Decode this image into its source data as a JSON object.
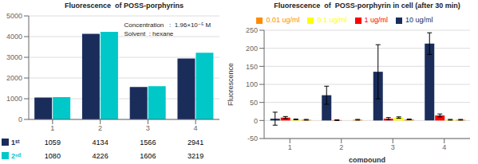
{
  "chart_data": [
    {
      "type": "bar",
      "title": "Fluorescence  of POSS-porphyrins",
      "categories": [
        "1",
        "2",
        "3",
        "4"
      ],
      "series": [
        {
          "name": "1ˢᵗ",
          "color": "#1a2d5a",
          "values": [
            1059,
            4134,
            1566,
            2941
          ]
        },
        {
          "name": "2ⁿᵈ",
          "color": "#00c8c8",
          "values": [
            1080,
            4226,
            1606,
            3219
          ]
        }
      ],
      "ylim": [
        0,
        5000
      ],
      "yticks": [
        0,
        1000,
        2000,
        3000,
        4000,
        5000
      ],
      "grid": true,
      "legend": "bottom",
      "annotations": [
        "Concentration   :  1.96×10⁻⁵ M",
        "Solvent  : hexane"
      ]
    },
    {
      "type": "bar",
      "title": "Fluorescence  of  POSS-porphyrin in cell (after 30 min)",
      "xlabel": "compound",
      "ylabel": "Fluorescence",
      "categories": [
        "1",
        "2",
        "3",
        "4"
      ],
      "series": [
        {
          "name": "10 ug/ml",
          "color": "#1a2d5a",
          "values": [
            5,
            70,
            135,
            213
          ],
          "errors": [
            18,
            25,
            75,
            30
          ]
        },
        {
          "name": "1 ug/ml",
          "color": "#ff0000",
          "values": [
            8,
            1,
            5,
            14
          ],
          "errors": [
            3,
            1,
            3,
            4
          ]
        },
        {
          "name": "0.1 ug/ml",
          "color": "#ffff00",
          "values": [
            3,
            0,
            8,
            2
          ],
          "errors": [
            1,
            0,
            2,
            1
          ]
        },
        {
          "name": "0.01 ug/ml",
          "color": "#ff8c00",
          "values": [
            2,
            2,
            3,
            2
          ],
          "errors": [
            1,
            1,
            1,
            1
          ]
        }
      ],
      "ylim": [
        -50,
        250
      ],
      "yticks": [
        -50,
        0,
        50,
        100,
        150,
        200,
        250
      ],
      "grid": true,
      "legend": "top"
    }
  ]
}
